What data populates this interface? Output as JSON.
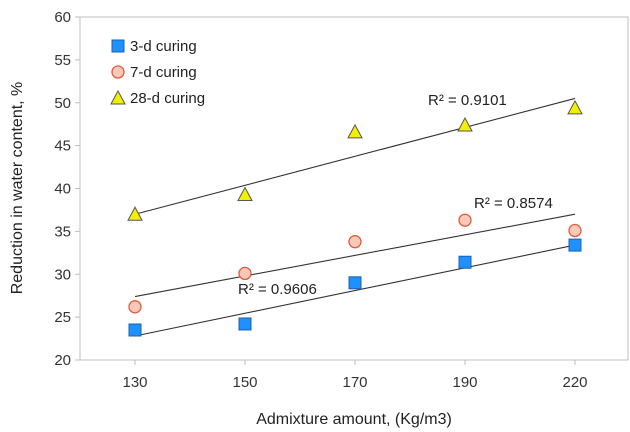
{
  "chart_data": {
    "type": "scatter",
    "title": "",
    "xlabel": "Admixture amount, (Kg/m3)",
    "ylabel": "Reduction in water content, %",
    "categories": [
      "130",
      "150",
      "170",
      "190",
      "220"
    ],
    "y_ticks": [
      "20",
      "25",
      "30",
      "35",
      "40",
      "45",
      "50",
      "55",
      "60"
    ],
    "ylim": [
      20,
      60
    ],
    "grid": false,
    "legend_position": "top-left",
    "series": [
      {
        "name": "3-d curing",
        "marker": "square",
        "color": "#1e90ff",
        "stroke": "#1f5fa8",
        "values": [
          23.5,
          24.2,
          29.0,
          31.4,
          33.4
        ],
        "trend": [
          22.8,
          33.4
        ],
        "r2": "R² = 0.9606"
      },
      {
        "name": "7-d curing",
        "marker": "circle",
        "color": "#f8c9b8",
        "stroke": "#e05a3c",
        "values": [
          26.2,
          30.1,
          33.8,
          36.3,
          35.1
        ],
        "trend": [
          27.4,
          37.0
        ],
        "r2": "R² = 0.8574"
      },
      {
        "name": "28-d curing",
        "marker": "triangle",
        "color": "#f2f000",
        "stroke": "#555555",
        "values": [
          37.0,
          39.3,
          46.6,
          47.4,
          49.4
        ],
        "trend": [
          37.0,
          50.5
        ],
        "r2": "R² = 0.9101"
      }
    ]
  }
}
